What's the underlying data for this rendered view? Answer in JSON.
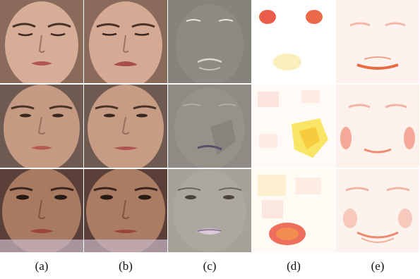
{
  "figure": {
    "captions": [
      "(a)",
      "(b)",
      "(c)",
      "(d)",
      "(e)"
    ],
    "rows": [
      {
        "name": "row-1"
      },
      {
        "name": "row-2"
      },
      {
        "name": "row-3"
      }
    ]
  },
  "colors": {
    "skin_light": "#d9b29a",
    "skin_mid": "#c79b80",
    "skin_dark": "#a6785e",
    "diff_gray": "#8b8780",
    "heat_red": "#e8402a",
    "heat_orange": "#f39a4a",
    "heat_yellow": "#f7e04a",
    "heat_pale": "#fbe6e0"
  }
}
